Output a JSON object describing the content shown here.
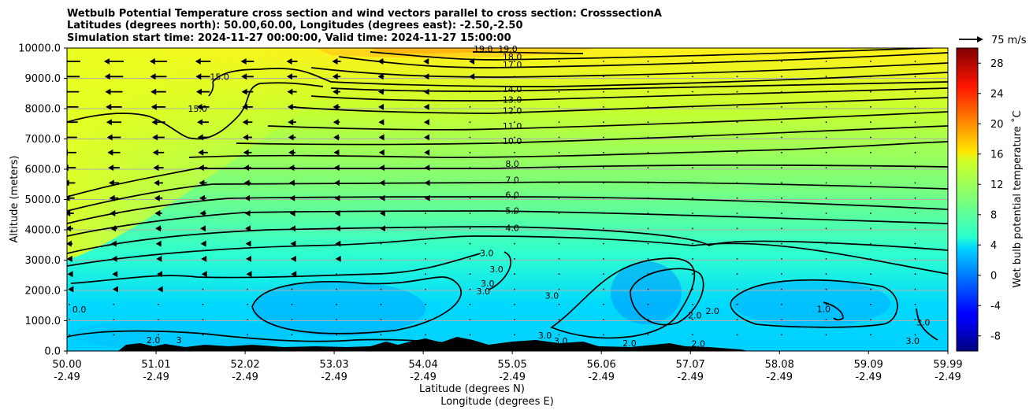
{
  "chart_data": {
    "type": "contour",
    "title_lines": [
      "Wetbulb Potential Temperature cross section and wind vectors parallel to cross section: CrosssectionA",
      "Latitudes (degrees north): 50.00,60.00, Longitudes (degrees east): -2.50,-2.50",
      "Simulation start time: 2024-11-27 00:00:00, Valid time: 2024-11-27 15:00:00"
    ],
    "xlabel": "Latitude (degrees N)",
    "xlabel2": "Longitude (degrees E)",
    "ylabel": "Altitude (meters)",
    "xlim": [
      50.0,
      59.99
    ],
    "ylim": [
      0,
      10000
    ],
    "x_ticks": [
      {
        "lat": "50.00",
        "lon": "-2.49",
        "value": 50.0
      },
      {
        "lat": "51.01",
        "lon": "-2.49",
        "value": 51.01
      },
      {
        "lat": "52.02",
        "lon": "-2.49",
        "value": 52.02
      },
      {
        "lat": "53.03",
        "lon": "-2.49",
        "value": 53.03
      },
      {
        "lat": "54.04",
        "lon": "-2.49",
        "value": 54.04
      },
      {
        "lat": "55.05",
        "lon": "-2.49",
        "value": 55.05
      },
      {
        "lat": "56.06",
        "lon": "-2.49",
        "value": 56.06
      },
      {
        "lat": "57.07",
        "lon": "-2.49",
        "value": 57.07
      },
      {
        "lat": "58.08",
        "lon": "-2.49",
        "value": 58.08
      },
      {
        "lat": "59.09",
        "lon": "-2.49",
        "value": 59.09
      },
      {
        "lat": "59.99",
        "lon": "-2.49",
        "value": 59.99
      }
    ],
    "y_ticks": [
      "0.0",
      "1000.0",
      "2000.0",
      "3000.0",
      "4000.0",
      "5000.0",
      "6000.0",
      "7000.0",
      "8000.0",
      "9000.0",
      "10000.0"
    ],
    "y_tick_values": [
      0,
      1000,
      2000,
      3000,
      4000,
      5000,
      6000,
      7000,
      8000,
      9000,
      10000
    ],
    "grid": "horizontal",
    "colorbar": {
      "label": "Wet bulb potential temperature ˚C",
      "range": [
        -10,
        30
      ],
      "ticks": [
        "-8",
        "-4",
        "0",
        "4",
        "8",
        "12",
        "16",
        "20",
        "24",
        "28"
      ],
      "tick_values": [
        -8,
        -4,
        0,
        4,
        8,
        12,
        16,
        20,
        24,
        28
      ],
      "colormap": "jet"
    },
    "quiver_key": {
      "label": "75 m/s",
      "value": 75
    },
    "contour_labels": [
      {
        "text": "19.0",
        "x": 55.0,
        "y": 9970
      },
      {
        "text": "19.0",
        "x": 54.72,
        "y": 9970
      },
      {
        "text": "18.0",
        "x": 55.05,
        "y": 9720
      },
      {
        "text": "17.0",
        "x": 55.05,
        "y": 9450
      },
      {
        "text": "14.0",
        "x": 55.05,
        "y": 8650
      },
      {
        "text": "13.0",
        "x": 55.05,
        "y": 8300
      },
      {
        "text": "12.0",
        "x": 55.05,
        "y": 7930
      },
      {
        "text": "11.0",
        "x": 55.05,
        "y": 7430
      },
      {
        "text": "10.0",
        "x": 55.05,
        "y": 6940
      },
      {
        "text": "8.0",
        "x": 55.05,
        "y": 6180
      },
      {
        "text": "7.0",
        "x": 55.05,
        "y": 5650
      },
      {
        "text": "6.0",
        "x": 55.05,
        "y": 5150
      },
      {
        "text": "5.0",
        "x": 55.05,
        "y": 4630
      },
      {
        "text": "4.0",
        "x": 55.05,
        "y": 4060
      },
      {
        "text": "15.0",
        "x": 51.73,
        "y": 9050
      },
      {
        "text": "15.0",
        "x": 51.48,
        "y": 8000
      },
      {
        "text": "3.0",
        "x": 54.76,
        "y": 3240
      },
      {
        "text": "3.0",
        "x": 54.87,
        "y": 2700
      },
      {
        "text": "3.0",
        "x": 54.77,
        "y": 2230
      },
      {
        "text": "3.0",
        "x": 54.72,
        "y": 1980
      },
      {
        "text": "3.0",
        "x": 55.5,
        "y": 1830
      },
      {
        "text": "3.0",
        "x": 55.42,
        "y": 520
      },
      {
        "text": "3.0",
        "x": 55.6,
        "y": 340
      },
      {
        "text": "2.0",
        "x": 57.12,
        "y": 1180
      },
      {
        "text": "2.0",
        "x": 57.32,
        "y": 1330
      },
      {
        "text": "1.0",
        "x": 58.58,
        "y": 1390
      },
      {
        "text": "3.0",
        "x": 59.71,
        "y": 950
      },
      {
        "text": "3.0",
        "x": 59.59,
        "y": 340
      },
      {
        "text": "2.0",
        "x": 56.38,
        "y": 260
      },
      {
        "text": "2.0",
        "x": 57.16,
        "y": 250
      },
      {
        "text": "0.0",
        "x": 50.14,
        "y": 1380
      },
      {
        "text": "2.0",
        "x": 50.98,
        "y": 370
      },
      {
        "text": "3",
        "x": 51.27,
        "y": 360
      },
      {
        "text": "3",
        "x": 54.53,
        "y": 240
      }
    ]
  }
}
